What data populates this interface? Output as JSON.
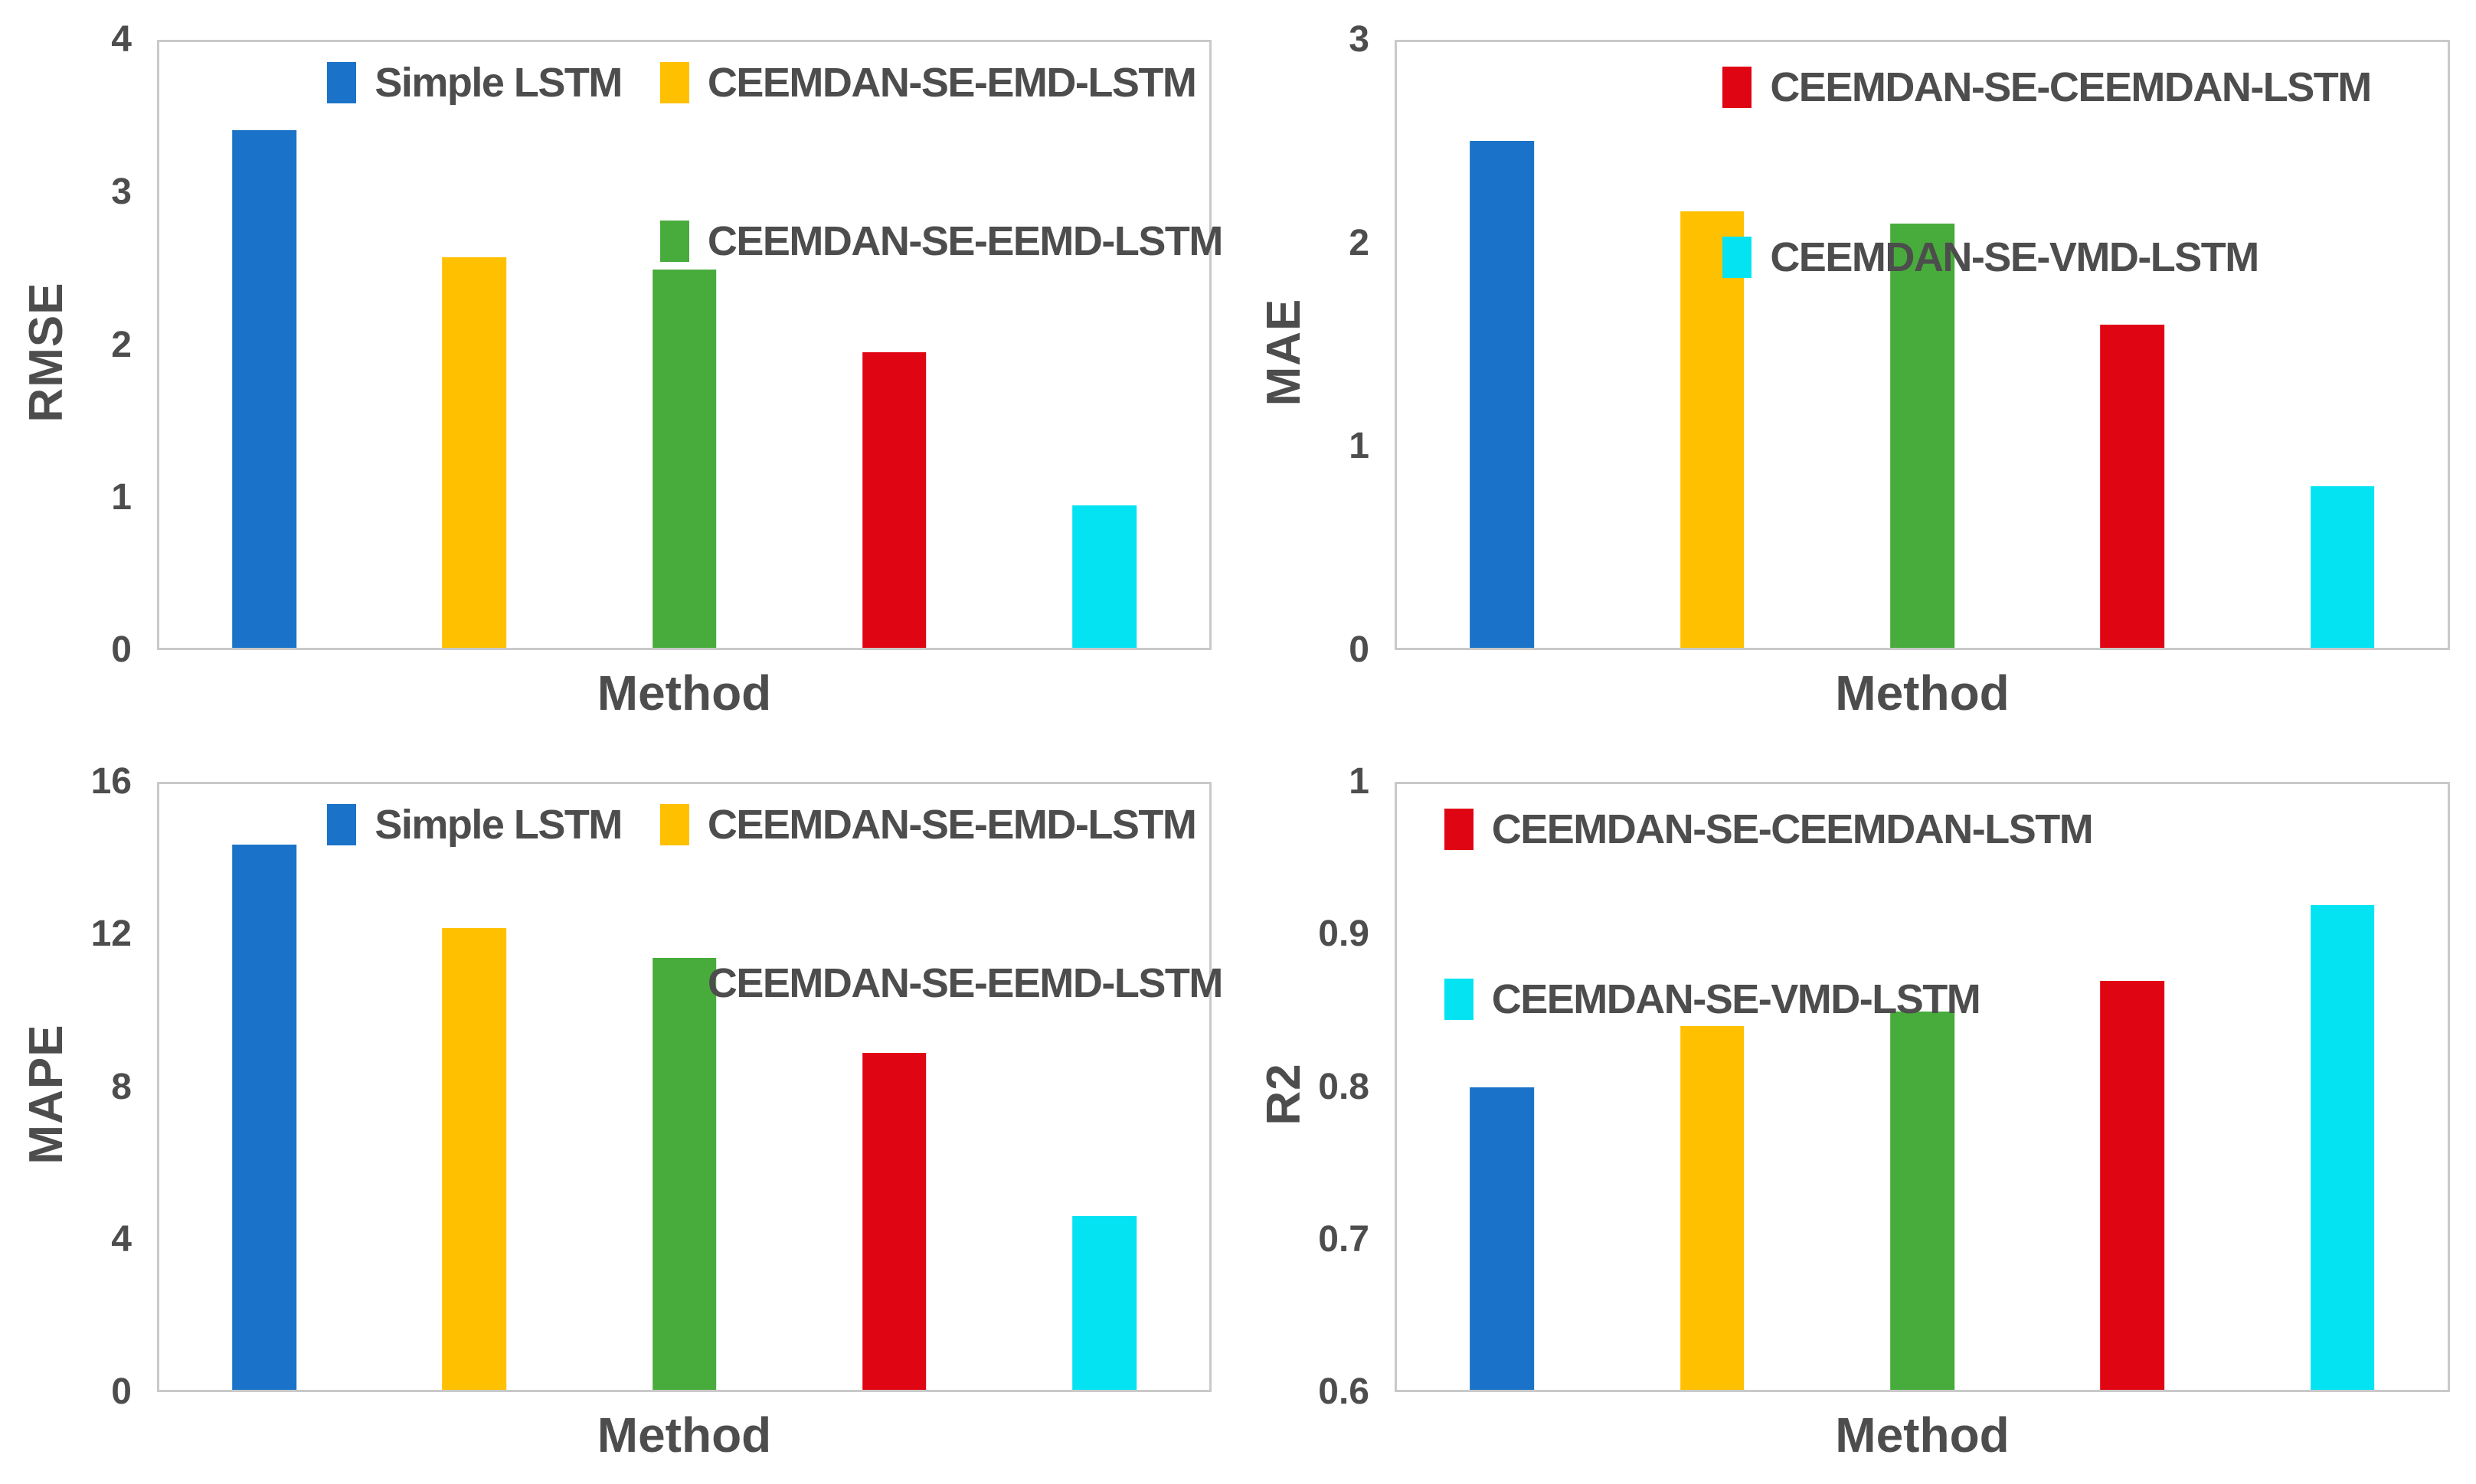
{
  "style": {
    "text_color": "#4d4d4d",
    "frame_border_color": "#c9c9c9",
    "background_color": "#ffffff"
  },
  "methods": [
    {
      "name": "Simple LSTM",
      "color": "#1a73c8"
    },
    {
      "name": "CEEMDAN-SE-EMD-LSTM",
      "color": "#ffc000"
    },
    {
      "name": "CEEMDAN-SE-EEMD-LSTM",
      "color": "#47ac3b"
    },
    {
      "name": "CEEMDAN-SE-CEEMDAN-LSTM",
      "color": "#e00513"
    },
    {
      "name": "CEEMDAN-SE-VMD-LSTM",
      "color": "#04e3f2"
    }
  ],
  "chart_data": [
    {
      "type": "bar",
      "title": "",
      "ylabel": "RMSE",
      "xlabel": "Method",
      "ylim": [
        0,
        4
      ],
      "yticks": [
        "0",
        "1",
        "2",
        "3",
        "4"
      ],
      "grid": false,
      "categories": [
        "Simple LSTM",
        "CEEMDAN-SE-EMD-LSTM",
        "CEEMDAN-SE-EEMD-LSTM",
        "CEEMDAN-SE-CEEMDAN-LSTM",
        "CEEMDAN-SE-VMD-LSTM"
      ],
      "values": [
        3.42,
        2.58,
        2.5,
        1.95,
        0.94
      ],
      "bar_colors": [
        "#1a73c8",
        "#ffc000",
        "#47ac3b",
        "#e00513",
        "#04e3f2"
      ],
      "legend_position": "top-inside",
      "legend_rows": [
        [
          0,
          1
        ],
        [
          null,
          2
        ]
      ]
    },
    {
      "type": "bar",
      "title": "",
      "ylabel": "MAE",
      "xlabel": "Method",
      "ylim": [
        0,
        3
      ],
      "yticks": [
        "0",
        "1",
        "2",
        "3"
      ],
      "grid": false,
      "categories": [
        "Simple LSTM",
        "CEEMDAN-SE-EMD-LSTM",
        "CEEMDAN-SE-EEMD-LSTM",
        "CEEMDAN-SE-CEEMDAN-LSTM",
        "CEEMDAN-SE-VMD-LSTM"
      ],
      "values": [
        2.51,
        2.16,
        2.1,
        1.6,
        0.8
      ],
      "bar_colors": [
        "#1a73c8",
        "#ffc000",
        "#47ac3b",
        "#e00513",
        "#04e3f2"
      ],
      "legend_position": "top-inside",
      "legend_rows": [
        [
          3
        ],
        [
          4
        ]
      ]
    },
    {
      "type": "bar",
      "title": "",
      "ylabel": "MAPE",
      "xlabel": "Method",
      "ylim": [
        0,
        16
      ],
      "yticks": [
        "0",
        "4",
        "8",
        "12",
        "16"
      ],
      "grid": false,
      "categories": [
        "Simple LSTM",
        "CEEMDAN-SE-EMD-LSTM",
        "CEEMDAN-SE-EEMD-LSTM",
        "CEEMDAN-SE-CEEMDAN-LSTM",
        "CEEMDAN-SE-VMD-LSTM"
      ],
      "values": [
        14.4,
        12.2,
        11.4,
        8.9,
        4.6
      ],
      "bar_colors": [
        "#1a73c8",
        "#ffc000",
        "#47ac3b",
        "#e00513",
        "#04e3f2"
      ],
      "legend_position": "top-inside",
      "legend_rows": [
        [
          0,
          1
        ],
        [
          null,
          2
        ]
      ]
    },
    {
      "type": "bar",
      "title": "",
      "ylabel": "R2",
      "xlabel": "Method",
      "ylim": [
        0.6,
        1
      ],
      "yticks": [
        "0.6",
        "0.7",
        "0.8",
        "0.9",
        "1"
      ],
      "grid": false,
      "categories": [
        "Simple LSTM",
        "CEEMDAN-SE-EMD-LSTM",
        "CEEMDAN-SE-EEMD-LSTM",
        "CEEMDAN-SE-CEEMDAN-LSTM",
        "CEEMDAN-SE-VMD-LSTM"
      ],
      "values": [
        0.8,
        0.84,
        0.85,
        0.87,
        0.92
      ],
      "bar_colors": [
        "#1a73c8",
        "#ffc000",
        "#47ac3b",
        "#e00513",
        "#04e3f2"
      ],
      "legend_position": "top-inside",
      "legend_rows": [
        [
          3
        ],
        [
          4
        ]
      ]
    }
  ]
}
